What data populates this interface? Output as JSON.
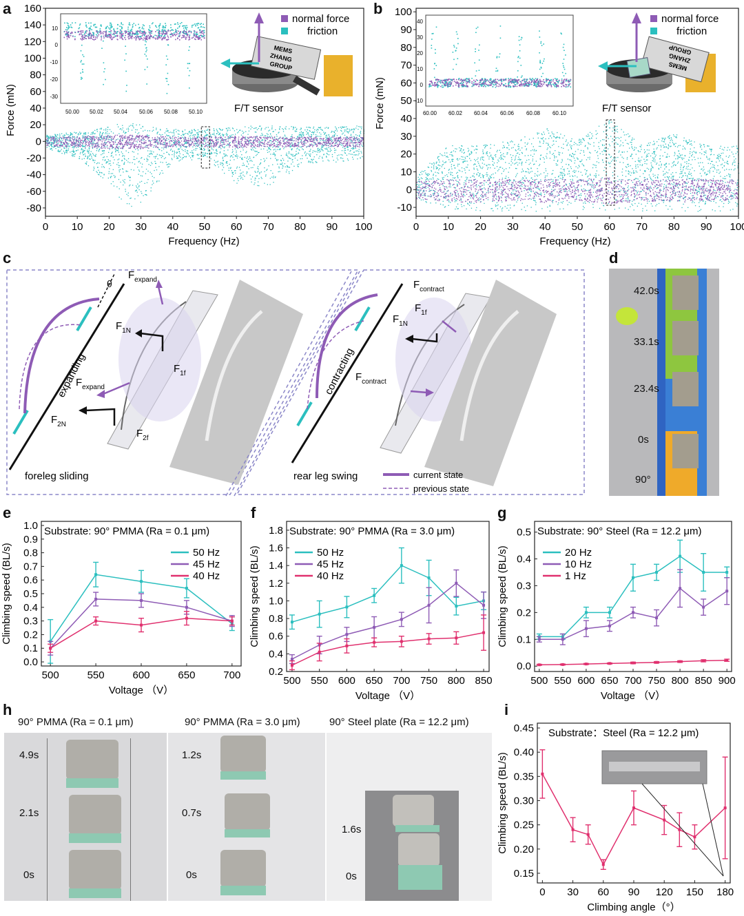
{
  "panel_letters": [
    "a",
    "b",
    "c",
    "d",
    "e",
    "f",
    "g",
    "h",
    "i"
  ],
  "colors": {
    "cyan": "#2bbfbf",
    "purple": "#8e5bb5",
    "magenta": "#e0306e",
    "black": "#111111",
    "dash": "#8a86c8"
  },
  "panel_a": {
    "xlabel": "Frequency (Hz)",
    "ylabel": "Force (mN)",
    "legend": [
      "normal force",
      "friction"
    ],
    "inset_ticks_x": [
      "50.00",
      "50.02",
      "50.04",
      "50.06",
      "50.08",
      "50.10"
    ],
    "inset_ticks_y": [
      "10",
      "0",
      "-10",
      "-20",
      "-30"
    ],
    "sensor_label": "F/T sensor",
    "badge_text": [
      "MEMS",
      "ZHANG",
      "GROUP"
    ]
  },
  "panel_b": {
    "xlabel": "Frequency (Hz)",
    "ylabel": "Force (mN)",
    "legend": [
      "normal force",
      "friction"
    ],
    "inset_ticks_x": [
      "60.00",
      "60.02",
      "60.04",
      "60.06",
      "60.08",
      "60.10"
    ],
    "inset_ticks_y": [
      "40",
      "30",
      "20",
      "10",
      "0",
      "-10"
    ],
    "sensor_label": "F/T sensor",
    "badge_text": [
      "MEMS",
      "ZHANG",
      "GROUP"
    ]
  },
  "panel_c": {
    "left_state": "expanding",
    "right_state": "contracting",
    "left_caption": "foreleg sliding",
    "right_caption": "rear leg swing",
    "theta": "θ",
    "legend_current": "current state",
    "legend_previous": "previous state"
  },
  "panel_d": {
    "times": [
      "42.0s",
      "33.1s",
      "23.4s",
      "0s"
    ],
    "angle": "90°"
  },
  "panel_h": {
    "titles": [
      "90° PMMA (Ra = 0.1 μm)",
      "90° PMMA (Ra = 3.0 μm)",
      "90° Steel plate (Ra = 12.2 μm)"
    ],
    "times1": [
      "4.9s",
      "2.1s",
      "0s"
    ],
    "times2": [
      "1.2s",
      "0.7s",
      "0s"
    ],
    "times3": [
      "1.6s",
      "0s"
    ]
  },
  "chart_data": [
    {
      "panel": "a",
      "type": "scatter",
      "title": "",
      "xlabel": "Frequency (Hz)",
      "ylabel": "Force (mN)",
      "xlim": [
        0,
        100
      ],
      "ylim": [
        -90,
        160
      ],
      "x_ticks": [
        0,
        10,
        20,
        30,
        40,
        50,
        60,
        70,
        80,
        90,
        100
      ],
      "y_ticks": [
        160,
        140,
        120,
        100,
        80,
        60,
        40,
        20,
        0,
        -20,
        -40,
        -60,
        -80
      ],
      "series": [
        {
          "name": "normal force",
          "x": [
            0,
            10,
            20,
            30,
            40,
            50,
            60,
            70,
            80,
            90,
            100
          ],
          "y_low": [
            -6,
            -6,
            -8,
            -8,
            -6,
            -6,
            -7,
            -6,
            -6,
            -6,
            -6
          ],
          "y_high": [
            6,
            6,
            8,
            8,
            6,
            6,
            7,
            6,
            6,
            6,
            6
          ]
        },
        {
          "name": "friction",
          "x": [
            0,
            10,
            20,
            25,
            30,
            40,
            50,
            60,
            70,
            80,
            90,
            100
          ],
          "y_low": [
            -8,
            -20,
            -50,
            -80,
            -75,
            -25,
            -20,
            -50,
            -55,
            -30,
            -25,
            -20
          ],
          "y_high": [
            8,
            12,
            18,
            25,
            20,
            15,
            15,
            18,
            20,
            18,
            18,
            20
          ]
        }
      ],
      "inset": {
        "xlim": [
          50.0,
          50.11
        ],
        "ylim": [
          -33,
          13
        ]
      }
    },
    {
      "panel": "b",
      "type": "scatter",
      "title": "",
      "xlabel": "Frequency (Hz)",
      "ylabel": "Force (mN)",
      "xlim": [
        0,
        100
      ],
      "ylim": [
        -15,
        102
      ],
      "x_ticks": [
        0,
        10,
        20,
        30,
        40,
        50,
        60,
        70,
        80,
        90,
        100
      ],
      "y_ticks": [
        100,
        90,
        80,
        70,
        60,
        50,
        40,
        30,
        20,
        10,
        0,
        -10
      ],
      "series": [
        {
          "name": "normal force",
          "x": [
            0,
            10,
            20,
            30,
            40,
            50,
            60,
            70,
            80,
            90,
            100
          ],
          "y_low": [
            -5,
            -7,
            -7,
            -6,
            -7,
            -6,
            -8,
            -6,
            -7,
            -6,
            -6
          ],
          "y_high": [
            5,
            6,
            6,
            6,
            6,
            6,
            7,
            6,
            6,
            6,
            6
          ]
        },
        {
          "name": "friction",
          "x": [
            0,
            10,
            20,
            30,
            40,
            50,
            60,
            70,
            80,
            90,
            100
          ],
          "y_low": [
            -5,
            -12,
            -12,
            -12,
            -12,
            -12,
            -12,
            -12,
            -12,
            -12,
            -12
          ],
          "y_high": [
            8,
            25,
            25,
            28,
            35,
            28,
            40,
            25,
            32,
            25,
            25
          ]
        }
      ],
      "inset": {
        "xlim": [
          60.0,
          60.11
        ],
        "ylim": [
          -14,
          43
        ]
      }
    },
    {
      "panel": "e",
      "type": "line",
      "title": "Substrate: 90° PMMA (Ra = 0.1 μm)",
      "xlabel": "Voltage （V）",
      "ylabel": "Climbing speed (BL/s)",
      "xlim": [
        490,
        710
      ],
      "ylim": [
        -0.03,
        1.03
      ],
      "x_ticks": [
        500,
        550,
        600,
        650,
        700
      ],
      "y_ticks": [
        0.0,
        0.1,
        0.2,
        0.3,
        0.4,
        0.5,
        0.6,
        0.7,
        0.8,
        0.9,
        1.0
      ],
      "categories": [
        500,
        550,
        600,
        650,
        700
      ],
      "series": [
        {
          "name": "50 Hz",
          "values": [
            0.15,
            0.64,
            0.59,
            0.54,
            0.28
          ],
          "errors": [
            0.16,
            0.09,
            0.08,
            0.07,
            0.05
          ]
        },
        {
          "name": "45 Hz",
          "values": [
            0.1,
            0.46,
            0.45,
            0.4,
            0.3
          ],
          "errors": [
            0.05,
            0.05,
            0.05,
            0.05,
            0.04
          ]
        },
        {
          "name": "40 Hz",
          "values": [
            0.1,
            0.3,
            0.27,
            0.32,
            0.3
          ],
          "errors": [
            0.03,
            0.03,
            0.05,
            0.05,
            0.03
          ]
        }
      ]
    },
    {
      "panel": "f",
      "type": "line",
      "title": "Substrate: 90° PMMA (Ra = 3.0 μm)",
      "xlabel": "Voltage （V）",
      "ylabel": "Climbing speed (BL/s)",
      "xlim": [
        490,
        860
      ],
      "ylim": [
        0.2,
        1.9
      ],
      "x_ticks": [
        500,
        550,
        600,
        650,
        700,
        750,
        800,
        850
      ],
      "y_ticks": [
        0.2,
        0.4,
        0.6,
        0.8,
        1.0,
        1.2,
        1.4,
        1.6,
        1.8
      ],
      "categories": [
        500,
        550,
        600,
        650,
        700,
        750,
        800,
        850
      ],
      "series": [
        {
          "name": "50 Hz",
          "values": [
            0.76,
            0.85,
            0.93,
            1.06,
            1.4,
            1.26,
            0.94,
            1.0
          ],
          "errors": [
            0.08,
            0.15,
            0.12,
            0.08,
            0.2,
            0.2,
            0.1,
            0.1
          ]
        },
        {
          "name": "45 Hz",
          "values": [
            0.34,
            0.5,
            0.62,
            0.7,
            0.79,
            0.95,
            1.2,
            0.95
          ],
          "errors": [
            0.05,
            0.1,
            0.08,
            0.12,
            0.08,
            0.2,
            0.15,
            0.15
          ]
        },
        {
          "name": "40 Hz",
          "values": [
            0.27,
            0.42,
            0.49,
            0.53,
            0.54,
            0.57,
            0.58,
            0.64
          ],
          "errors": [
            0.05,
            0.1,
            0.08,
            0.05,
            0.06,
            0.06,
            0.07,
            0.2
          ]
        }
      ]
    },
    {
      "panel": "g",
      "type": "line",
      "title": "Substrate: 90° Steel (Ra = 12.2 μm)",
      "xlabel": "Voltage （V）",
      "ylabel": "Climbing speed (BL/s)",
      "xlim": [
        490,
        910
      ],
      "ylim": [
        -0.02,
        0.54
      ],
      "x_ticks": [
        500,
        550,
        600,
        650,
        700,
        750,
        800,
        850,
        900
      ],
      "y_ticks": [
        0.0,
        0.1,
        0.2,
        0.3,
        0.4,
        0.5
      ],
      "categories": [
        500,
        550,
        600,
        650,
        700,
        750,
        800,
        850,
        900
      ],
      "series": [
        {
          "name": "20 Hz",
          "values": [
            0.11,
            0.11,
            0.2,
            0.2,
            0.33,
            0.35,
            0.41,
            0.35,
            0.35
          ],
          "errors": [
            0.01,
            0.01,
            0.02,
            0.02,
            0.05,
            0.03,
            0.06,
            0.07,
            0.02
          ]
        },
        {
          "name": "10 Hz",
          "values": [
            0.1,
            0.1,
            0.14,
            0.15,
            0.2,
            0.18,
            0.29,
            0.22,
            0.28
          ],
          "errors": [
            0.01,
            0.02,
            0.03,
            0.02,
            0.02,
            0.03,
            0.07,
            0.03,
            0.05
          ]
        },
        {
          "name": "1 Hz",
          "values": [
            0.005,
            0.006,
            0.008,
            0.01,
            0.012,
            0.014,
            0.017,
            0.02,
            0.022
          ],
          "errors": [
            0.002,
            0.002,
            0.002,
            0.002,
            0.003,
            0.003,
            0.003,
            0.004,
            0.004
          ]
        }
      ]
    },
    {
      "panel": "i",
      "type": "line",
      "title": "Substrate：Steel (Ra = 12.2 μm)",
      "xlabel": "Climbing angle（°）",
      "ylabel": "Climbing speed (BL/s)",
      "xlim": [
        -5,
        185
      ],
      "ylim": [
        0.13,
        0.46
      ],
      "x_ticks": [
        0,
        30,
        60,
        90,
        120,
        150,
        180
      ],
      "y_ticks": [
        0.15,
        0.2,
        0.25,
        0.3,
        0.35,
        0.4,
        0.45
      ],
      "categories": [
        0,
        30,
        45,
        60,
        90,
        120,
        135,
        150,
        180
      ],
      "series": [
        {
          "name": "Steel",
          "values": [
            0.355,
            0.24,
            0.23,
            0.168,
            0.285,
            0.26,
            0.24,
            0.225,
            0.285
          ],
          "errors": [
            0.05,
            0.025,
            0.02,
            0.01,
            0.035,
            0.03,
            0.035,
            0.025,
            0.105
          ]
        }
      ]
    }
  ]
}
